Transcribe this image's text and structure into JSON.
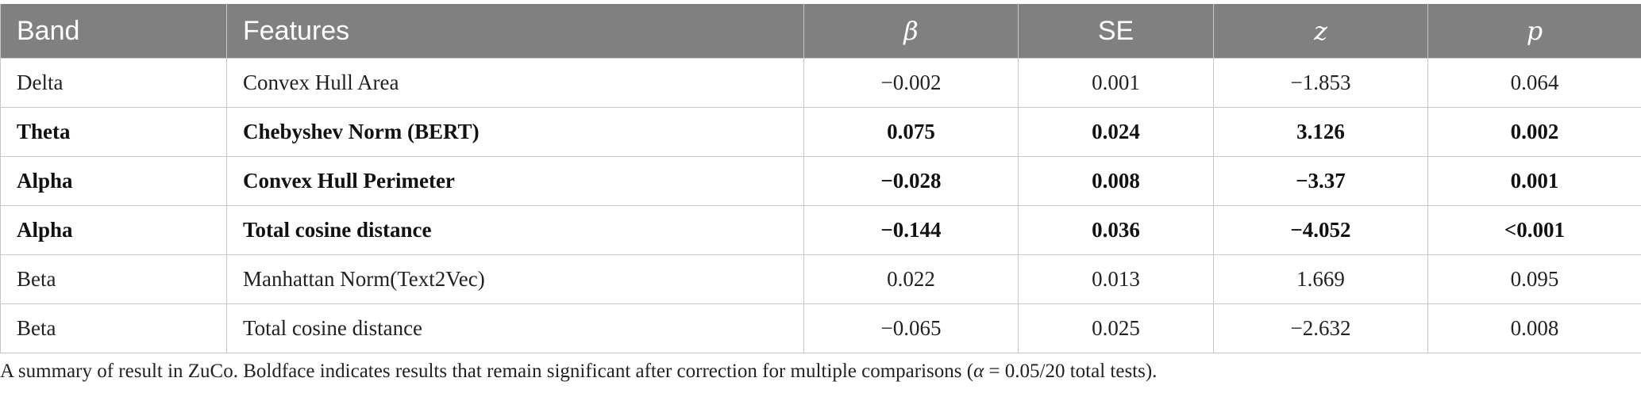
{
  "table": {
    "headers": [
      "Band",
      "Features",
      "β",
      "SE",
      "z",
      "p"
    ],
    "rows": [
      {
        "bold": false,
        "cells": [
          "Delta",
          "Convex Hull Area",
          "−0.002",
          "0.001",
          "−1.853",
          "0.064"
        ]
      },
      {
        "bold": true,
        "cells": [
          "Theta",
          "Chebyshev Norm (BERT)",
          "0.075",
          "0.024",
          "3.126",
          "0.002"
        ]
      },
      {
        "bold": true,
        "cells": [
          "Alpha",
          "Convex Hull Perimeter",
          "−0.028",
          "0.008",
          "−3.37",
          "0.001"
        ]
      },
      {
        "bold": true,
        "cells": [
          "Alpha",
          "Total cosine distance",
          "−0.144",
          "0.036",
          "−4.052",
          "<0.001"
        ]
      },
      {
        "bold": false,
        "cells": [
          "Beta",
          "Manhattan Norm(Text2Vec)",
          "0.022",
          "0.013",
          "1.669",
          "0.095"
        ]
      },
      {
        "bold": false,
        "cells": [
          "Beta",
          "Total cosine distance",
          "−0.065",
          "0.025",
          "−2.632",
          "0.008"
        ]
      }
    ]
  },
  "caption": {
    "text_before": "A summary of result in ZuCo. Boldface indicates results that remain significant after correction for multiple comparisons (",
    "alpha_symbol": "α",
    "text_after": " = 0.05/20 total tests)."
  },
  "colors": {
    "header_bg": "#808080",
    "header_text": "#ffffff",
    "border": "#c8c8c8"
  }
}
